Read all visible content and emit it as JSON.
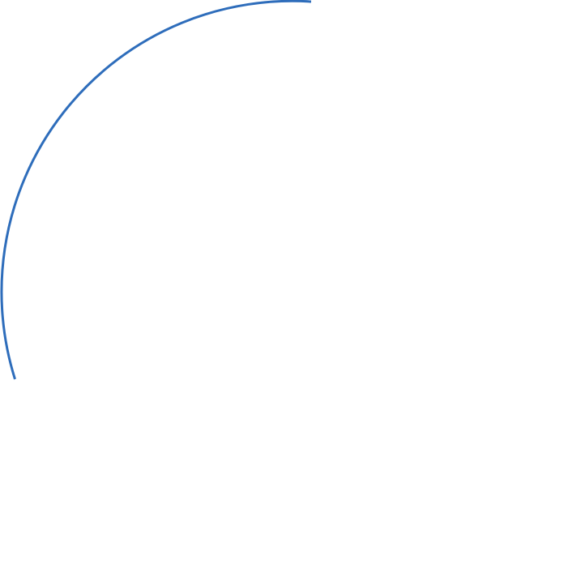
{
  "shape": {
    "type": "arc",
    "stroke_color": "#2E6DBB",
    "fill": "none"
  }
}
